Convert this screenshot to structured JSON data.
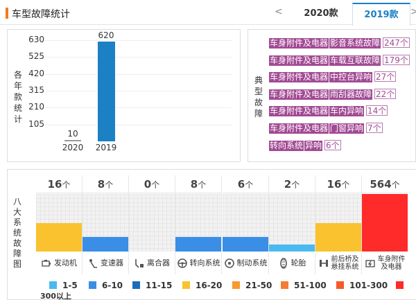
{
  "header": {
    "title": "车型故障统计",
    "prev": "<",
    "next": ">",
    "tabs": [
      {
        "label": "2020款",
        "active": false
      },
      {
        "label": "2019款",
        "active": true
      }
    ],
    "accent": "#1b80c4",
    "title_mark_color": "#f07d1a"
  },
  "year_chart": {
    "side_label": [
      "各",
      "年",
      "款",
      "统",
      "计"
    ],
    "chart_data": {
      "type": "bar",
      "categories": [
        "2020",
        "2019"
      ],
      "values": [
        10,
        620
      ],
      "yticks": [
        105,
        210,
        315,
        420,
        525,
        630
      ],
      "ylim": [
        0,
        630
      ],
      "colors": [
        "#999999",
        "#1b80c4"
      ]
    }
  },
  "faults": {
    "side_label": [
      "典",
      "型",
      "故",
      "障"
    ],
    "items": [
      {
        "category": "车身附件及电器",
        "name": "影音系统故障",
        "count": "247个"
      },
      {
        "category": "车身附件及电器",
        "name": "车载互联故障",
        "count": "179个"
      },
      {
        "category": "车身附件及电器",
        "name": "中控台异响",
        "count": "27个"
      },
      {
        "category": "车身附件及电器",
        "name": "雨刮器故障",
        "count": "22个"
      },
      {
        "category": "车身附件及电器",
        "name": "车内异响",
        "count": "14个"
      },
      {
        "category": "车身附件及电器",
        "name": "门窗异响",
        "count": "7个"
      },
      {
        "category": "转向系统",
        "name": "异响",
        "count": "6个"
      }
    ]
  },
  "systems": {
    "side_label": [
      "八",
      "大",
      "系",
      "统",
      "故",
      "障",
      "图"
    ],
    "unit": "个",
    "items": [
      {
        "count": "16",
        "label": "发动机",
        "icon": "engine-icon",
        "fill": 0.5,
        "color": "#f9c22e"
      },
      {
        "count": "8",
        "label": "变速器",
        "icon": "gearshift-icon",
        "fill": 0.25,
        "color": "#3a8ee6"
      },
      {
        "count": "0",
        "label": "离合器",
        "icon": "clutch-icon",
        "fill": 0,
        "color": "#3a8ee6"
      },
      {
        "count": "8",
        "label": "转向系统",
        "icon": "steering-wheel-icon",
        "fill": 0.25,
        "color": "#3a8ee6"
      },
      {
        "count": "6",
        "label": "制动系统",
        "icon": "brake-icon",
        "fill": 0.25,
        "color": "#3a8ee6"
      },
      {
        "count": "2",
        "label": "轮胎",
        "icon": "tire-icon",
        "fill": 0.12,
        "color": "#4ab9ef"
      },
      {
        "count": "16",
        "label": "前后桥及悬挂系统",
        "label_lines": [
          "前后桥及",
          "悬挂系统"
        ],
        "icon": "suspension-icon",
        "fill": 0.5,
        "color": "#f9c22e"
      },
      {
        "count": "564",
        "label": "车身附件及电器",
        "label_lines": [
          "车身附件",
          "及电器"
        ],
        "icon": "body-electrical-icon",
        "fill": 1.0,
        "color": "#ff2a2a"
      }
    ]
  },
  "legend": [
    {
      "label": "1-5",
      "color": "#4ab9ef"
    },
    {
      "label": "6-10",
      "color": "#3a8ee6"
    },
    {
      "label": "11-15",
      "color": "#1b6fb8"
    },
    {
      "label": "16-20",
      "color": "#f9c22e"
    },
    {
      "label": "21-50",
      "color": "#f99a2e"
    },
    {
      "label": "51-100",
      "color": "#f57b35"
    },
    {
      "label": "101-300",
      "color": "#f35a2a"
    },
    {
      "label": "300以上",
      "color": "#ff2a2a"
    }
  ]
}
